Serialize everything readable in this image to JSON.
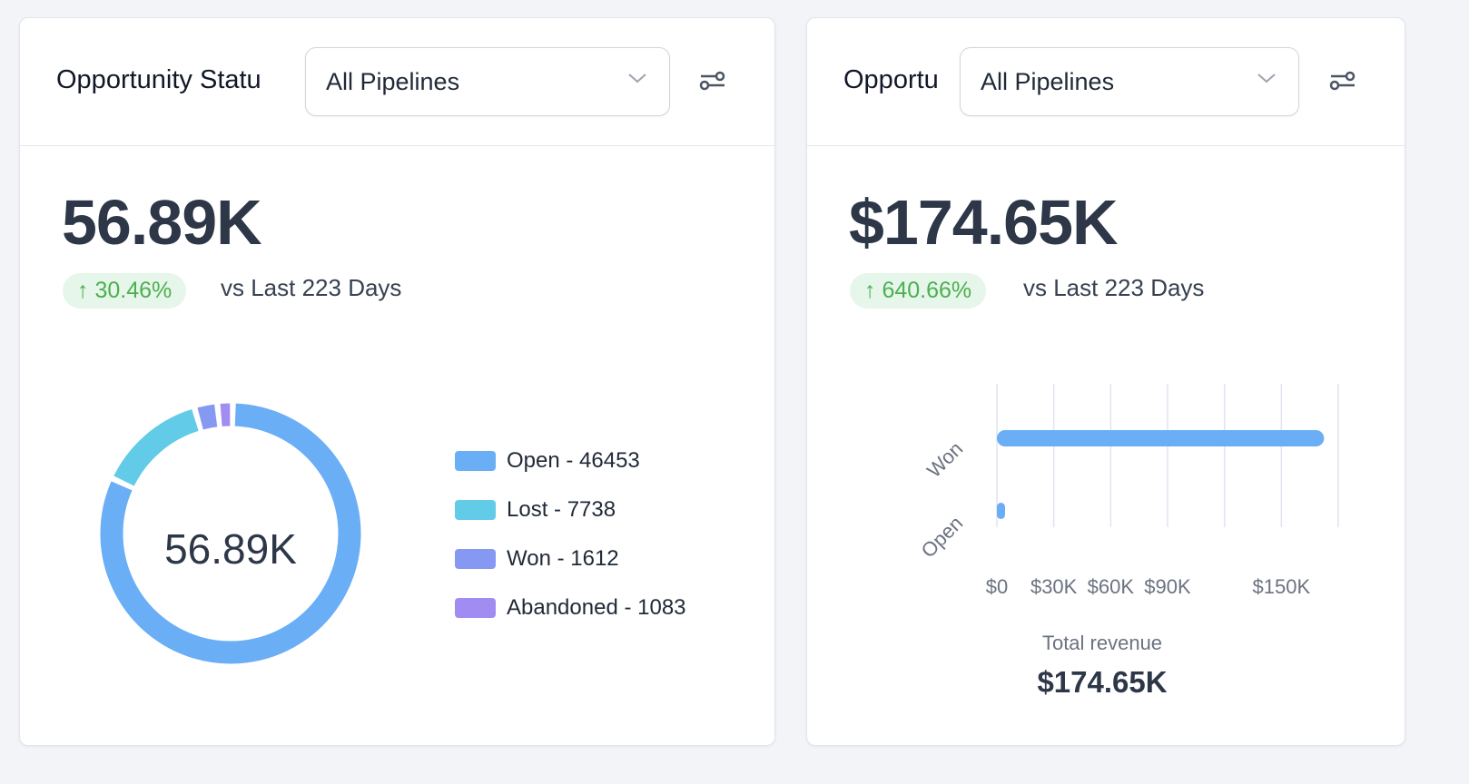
{
  "left_card": {
    "title": "Opportunity Statu",
    "dropdown": "All Pipelines",
    "value": "56.89K",
    "change": "30.46%",
    "change_direction": "up",
    "comparison": "vs Last 223 Days",
    "chart_data": {
      "type": "pie",
      "center_label": "56.89K",
      "categories": [
        "Open",
        "Lost",
        "Won",
        "Abandoned"
      ],
      "values": [
        46453,
        7738,
        1612,
        1083
      ],
      "colors": [
        "#6aaef5",
        "#62cbe8",
        "#8699f2",
        "#a18cf1"
      ],
      "legend": [
        "Open - 46453",
        "Lost - 7738",
        "Won - 1612",
        "Abandoned - 1083"
      ],
      "legend_position": "right"
    }
  },
  "right_card": {
    "title": "Opportu",
    "dropdown": "All Pipelines",
    "value": "$174.65K",
    "change": "640.66%",
    "change_direction": "up",
    "comparison": "vs Last 223 Days",
    "chart_data": {
      "type": "bar",
      "orientation": "horizontal",
      "categories": [
        "Won",
        "Open"
      ],
      "values": [
        172500,
        2150
      ],
      "xlim": [
        0,
        180000
      ],
      "x_ticks": [
        0,
        30000,
        60000,
        90000,
        120000,
        150000,
        180000
      ],
      "x_tick_labels": [
        "$0",
        "$30K",
        "$60K",
        "$90K",
        "",
        "$150K",
        ""
      ],
      "grid": true,
      "color": "#6aaef5"
    },
    "total_label": "Total revenue",
    "total_value": "$174.65K"
  },
  "colors": {
    "accent": "#6aaef5",
    "positive": "#4caf50",
    "positive_bg": "#e6f6ea"
  }
}
